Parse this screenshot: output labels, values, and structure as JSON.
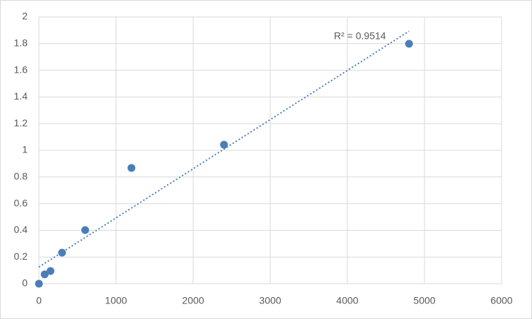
{
  "chart_data": {
    "type": "scatter",
    "x": [
      0,
      75,
      150,
      300,
      600,
      1200,
      2400,
      4800
    ],
    "values": [
      0,
      0.07,
      0.095,
      0.233,
      0.402,
      0.868,
      1.042,
      1.799
    ],
    "color": "#4a7ebb",
    "xlim": [
      0,
      6000
    ],
    "xticks": [
      0,
      1000,
      2000,
      3000,
      4000,
      5000,
      6000
    ],
    "ylim": [
      0,
      2
    ],
    "yticks": [
      0,
      0.2,
      0.4,
      0.6,
      0.8,
      1,
      1.2,
      1.4,
      1.6,
      1.8,
      2
    ],
    "grid": true,
    "trendline": "linear",
    "annotation": "R² = 0.9514"
  }
}
